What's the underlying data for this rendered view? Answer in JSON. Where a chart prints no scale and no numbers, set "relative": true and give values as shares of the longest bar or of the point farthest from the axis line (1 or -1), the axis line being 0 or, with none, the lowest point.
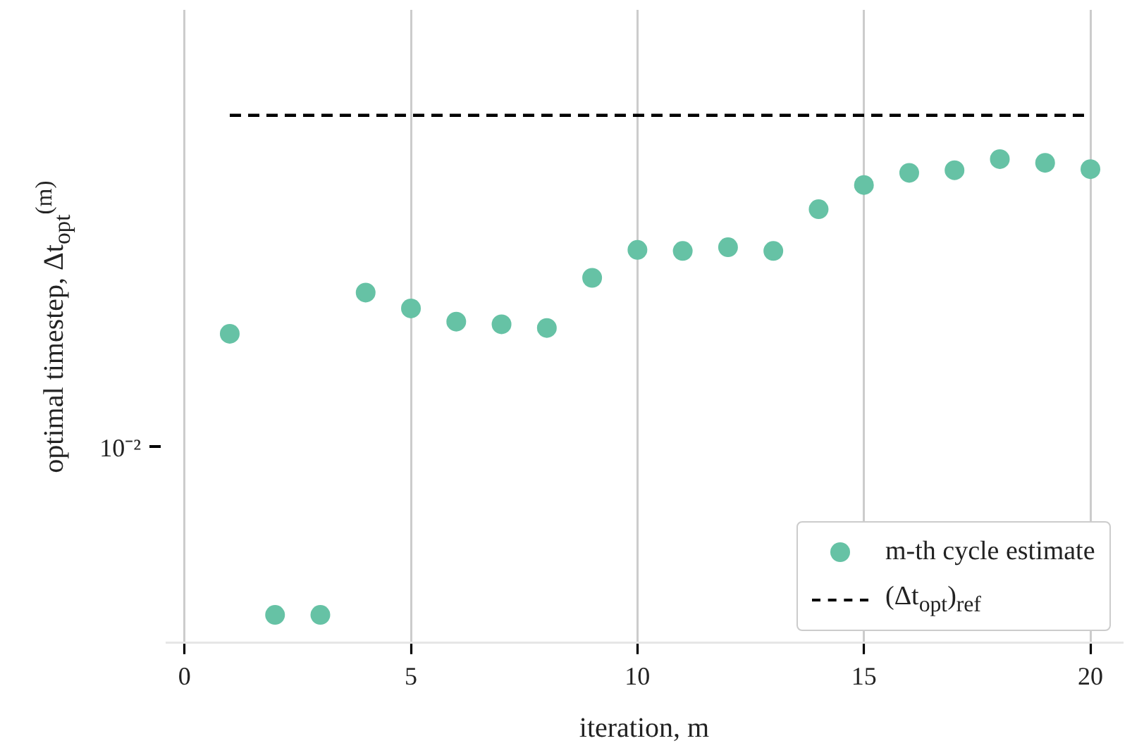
{
  "chart_data": {
    "type": "scatter",
    "xlabel": "iteration, m",
    "ylabel": "optimal timestep, Δt$_{opt}$$^{(m)}$",
    "x": [
      1,
      2,
      3,
      4,
      5,
      6,
      7,
      8,
      9,
      10,
      11,
      12,
      13,
      14,
      15,
      16,
      17,
      18,
      19,
      20
    ],
    "series": [
      {
        "name": "m-th cycle estimate",
        "color": "#66c2a5",
        "marker": "circle",
        "values": [
          0.586,
          0.053,
          0.053,
          0.664,
          0.634,
          0.609,
          0.604,
          0.597,
          0.692,
          0.745,
          0.743,
          0.75,
          0.743,
          0.822,
          0.868,
          0.891,
          0.896,
          0.917,
          0.91,
          0.898
        ]
      },
      {
        "name": "(Δt$_{opt}$)$_{ref}$",
        "type": "line",
        "color": "#000000",
        "marker": "none",
        "line_style": "dashed",
        "x": [
          1,
          20
        ],
        "values": [
          1,
          1
        ]
      }
    ],
    "relative": true,
    "xlim": [
      -0.4,
      20.7
    ],
    "xticks": [
      0,
      5,
      10,
      15,
      20
    ],
    "annotations": [
      "10⁻²"
    ],
    "grid": "x",
    "legend": "bottom right"
  }
}
